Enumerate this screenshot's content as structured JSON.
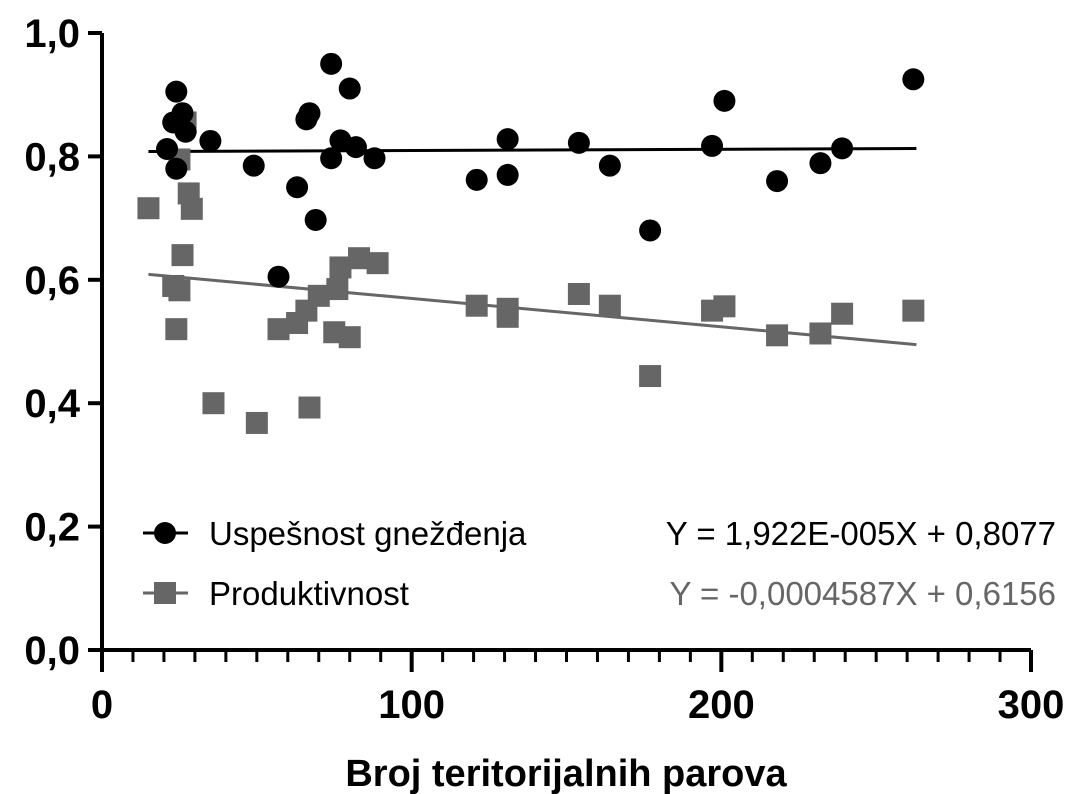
{
  "chart_data": {
    "type": "scatter",
    "xlabel": "Broj teritorijalnih parova",
    "ylabel": "",
    "xlim": [
      0,
      300
    ],
    "ylim": [
      0,
      1.0
    ],
    "x_ticks": [
      0,
      100,
      200,
      300
    ],
    "x_tick_labels": [
      "0",
      "100",
      "200",
      "300"
    ],
    "y_ticks": [
      0,
      0.2,
      0.4,
      0.6,
      0.8,
      1.0
    ],
    "y_tick_labels": [
      "0,0",
      "0,2",
      "0,4",
      "0,6",
      "0,8",
      "1,0"
    ],
    "x_minor_step": 10,
    "grid": false,
    "legend_position": "bottom",
    "series": [
      {
        "name": "Uspešnost gnežđenja",
        "marker": "circle",
        "color": "#000000",
        "equation": "Y = 1,922E-005X + 0,8077",
        "fit": {
          "slope": 1.922e-05,
          "intercept": 0.8077,
          "x_range": [
            15,
            263
          ]
        },
        "points": [
          [
            21,
            0.812
          ],
          [
            23,
            0.855
          ],
          [
            24,
            0.905
          ],
          [
            24,
            0.78
          ],
          [
            26,
            0.87
          ],
          [
            27,
            0.84
          ],
          [
            35,
            0.825
          ],
          [
            49,
            0.785
          ],
          [
            57,
            0.605
          ],
          [
            63,
            0.75
          ],
          [
            66,
            0.86
          ],
          [
            67,
            0.87
          ],
          [
            69,
            0.697
          ],
          [
            74,
            0.95
          ],
          [
            74,
            0.797
          ],
          [
            77,
            0.826
          ],
          [
            80,
            0.91
          ],
          [
            82,
            0.815
          ],
          [
            88,
            0.797
          ],
          [
            121,
            0.762
          ],
          [
            131,
            0.77
          ],
          [
            131,
            0.828
          ],
          [
            154,
            0.822
          ],
          [
            164,
            0.785
          ],
          [
            177,
            0.68
          ],
          [
            197,
            0.817
          ],
          [
            201,
            0.89
          ],
          [
            218,
            0.76
          ],
          [
            232,
            0.789
          ],
          [
            239,
            0.813
          ],
          [
            262,
            0.925
          ]
        ]
      },
      {
        "name": "Produktivnost",
        "marker": "square",
        "color": "#666666",
        "equation": "Y = -0,0004587X + 0,6156",
        "fit": {
          "slope": -0.0004587,
          "intercept": 0.6156,
          "x_range": [
            15,
            263
          ]
        },
        "points": [
          [
            15,
            0.716
          ],
          [
            23,
            0.59
          ],
          [
            24,
            0.52
          ],
          [
            25,
            0.583
          ],
          [
            25,
            0.795
          ],
          [
            26,
            0.64
          ],
          [
            27,
            0.855
          ],
          [
            28,
            0.74
          ],
          [
            29,
            0.715
          ],
          [
            36,
            0.4
          ],
          [
            50,
            0.368
          ],
          [
            57,
            0.52
          ],
          [
            63,
            0.53
          ],
          [
            66,
            0.55
          ],
          [
            67,
            0.393
          ],
          [
            70,
            0.574
          ],
          [
            75,
            0.515
          ],
          [
            76,
            0.585
          ],
          [
            77,
            0.62
          ],
          [
            80,
            0.507
          ],
          [
            83,
            0.635
          ],
          [
            89,
            0.627
          ],
          [
            121,
            0.558
          ],
          [
            131,
            0.553
          ],
          [
            131,
            0.54
          ],
          [
            154,
            0.577
          ],
          [
            164,
            0.558
          ],
          [
            177,
            0.444
          ],
          [
            197,
            0.55
          ],
          [
            201,
            0.557
          ],
          [
            218,
            0.51
          ],
          [
            232,
            0.513
          ],
          [
            239,
            0.545
          ],
          [
            262,
            0.55
          ]
        ]
      }
    ]
  }
}
